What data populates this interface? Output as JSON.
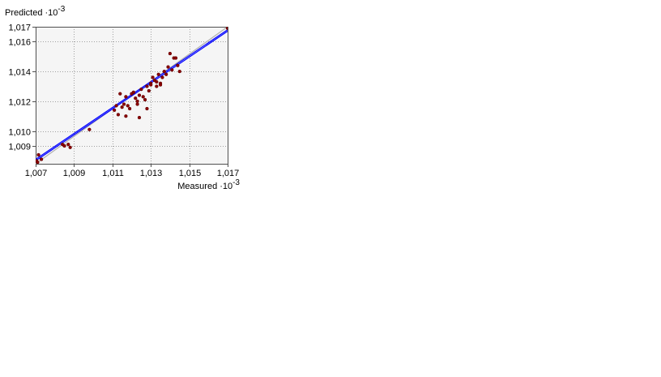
{
  "chart_data": {
    "type": "scatter",
    "ylabel": "Predicted",
    "ylabel_exponent": "·10",
    "ylabel_exponent_sup": "-3",
    "xlabel": "Measured",
    "xlabel_exponent": "·10",
    "xlabel_exponent_sup": "-3",
    "xlim": [
      1.007,
      1.017
    ],
    "ylim": [
      1.0078,
      1.017
    ],
    "x_ticks": [
      1.007,
      1.009,
      1.011,
      1.013,
      1.015,
      1.017
    ],
    "x_tick_labels": [
      "1,007",
      "1,009",
      "1,011",
      "1,013",
      "1,015",
      "1,017"
    ],
    "y_ticks": [
      1.009,
      1.01,
      1.012,
      1.014,
      1.016,
      1.017
    ],
    "y_tick_labels": [
      "1,009",
      "1,010",
      "1,012",
      "1,014",
      "1,016",
      "1,017"
    ],
    "grid": true,
    "reference_line": {
      "from": [
        1.007,
        1.0078
      ],
      "to": [
        1.017,
        1.017
      ],
      "color": "#b0b0b0"
    },
    "fit_lines": [
      {
        "from": [
          1.007,
          1.0081
        ],
        "to": [
          1.017,
          1.0168
        ],
        "color": "#0000ff"
      },
      {
        "from": [
          1.007,
          1.008
        ],
        "to": [
          1.017,
          1.0167
        ],
        "color": "#0000ff"
      }
    ],
    "series": [
      {
        "color": "#8b0000",
        "points": [
          [
            1.00705,
            1.008
          ],
          [
            1.0071,
            1.0079
          ],
          [
            1.00715,
            1.0084
          ],
          [
            1.0073,
            1.0081
          ],
          [
            1.0084,
            1.0091
          ],
          [
            1.0085,
            1.009
          ],
          [
            1.0087,
            1.0091
          ],
          [
            1.0088,
            1.0089
          ],
          [
            1.0098,
            1.0101
          ],
          [
            1.0111,
            1.0114
          ],
          [
            1.0112,
            1.0117
          ],
          [
            1.0113,
            1.0111
          ],
          [
            1.0114,
            1.0125
          ],
          [
            1.0115,
            1.0116
          ],
          [
            1.0116,
            1.0118
          ],
          [
            1.0117,
            1.011
          ],
          [
            1.0117,
            1.0123
          ],
          [
            1.0118,
            1.0117
          ],
          [
            1.0119,
            1.0115
          ],
          [
            1.012,
            1.0125
          ],
          [
            1.0121,
            1.0126
          ],
          [
            1.0122,
            1.0122
          ],
          [
            1.0123,
            1.012
          ],
          [
            1.0123,
            1.0118
          ],
          [
            1.0124,
            1.0109
          ],
          [
            1.0124,
            1.0124
          ],
          [
            1.0125,
            1.0128
          ],
          [
            1.0126,
            1.0123
          ],
          [
            1.0127,
            1.0121
          ],
          [
            1.0128,
            1.013
          ],
          [
            1.0128,
            1.0115
          ],
          [
            1.0129,
            1.0127
          ],
          [
            1.013,
            1.0132
          ],
          [
            1.013,
            1.0131
          ],
          [
            1.0131,
            1.0136
          ],
          [
            1.0132,
            1.0134
          ],
          [
            1.0133,
            1.013
          ],
          [
            1.0133,
            1.0133
          ],
          [
            1.0134,
            1.0138
          ],
          [
            1.0135,
            1.0132
          ],
          [
            1.0135,
            1.0131
          ],
          [
            1.0136,
            1.0136
          ],
          [
            1.0137,
            1.014
          ],
          [
            1.0138,
            1.0138
          ],
          [
            1.0139,
            1.0143
          ],
          [
            1.014,
            1.0152
          ],
          [
            1.0141,
            1.0141
          ],
          [
            1.0142,
            1.0149
          ],
          [
            1.0143,
            1.0149
          ],
          [
            1.0144,
            1.0144
          ],
          [
            1.0145,
            1.014
          ],
          [
            1.0167,
            1.0172
          ],
          [
            1.017,
            1.0169
          ]
        ]
      }
    ]
  }
}
